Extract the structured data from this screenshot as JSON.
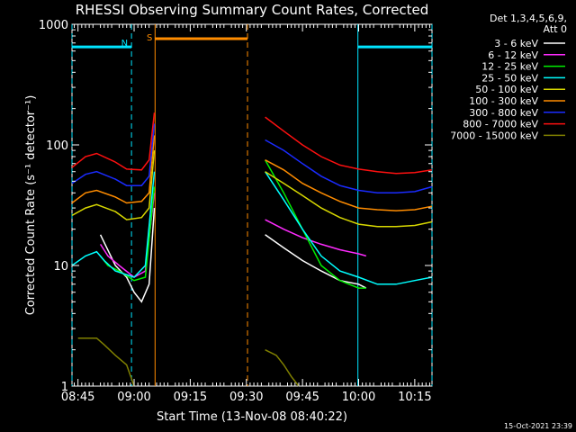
{
  "chart_data": {
    "type": "line",
    "title": "RHESSI Observing Summary Count Rates, Corrected",
    "xlabel": "Start Time (13-Nov-08 08:40:22)",
    "ylabel": "Corrected Count Rate (s⁻¹ detector⁻¹)",
    "y_scale": "log",
    "ylim": [
      1,
      1000
    ],
    "xlim_minutes_after_0840": [
      3.4,
      99.6
    ],
    "x_ticks": [
      {
        "label": "08:45",
        "minutes": 5
      },
      {
        "label": "09:00",
        "minutes": 20
      },
      {
        "label": "09:15",
        "minutes": 35
      },
      {
        "label": "09:30",
        "minutes": 50
      },
      {
        "label": "09:45",
        "minutes": 65
      },
      {
        "label": "10:00",
        "minutes": 80
      },
      {
        "label": "10:15",
        "minutes": 95
      }
    ],
    "y_ticks": [
      {
        "label": "1",
        "value": 1
      },
      {
        "label": "10",
        "value": 10
      },
      {
        "label": "100",
        "value": 100
      },
      {
        "label": "1000",
        "value": 1000
      }
    ],
    "legend_header": [
      "Det 1,3,4,5,6,9,",
      "Att 0"
    ],
    "legend_position": "right",
    "footer_timestamp": "15-Oct-2021 23:39",
    "markers": [
      {
        "label": "N",
        "color": "#00e5ff"
      },
      {
        "label": "S",
        "color": "#ff8c00"
      }
    ],
    "intervals": [
      {
        "kind": "night",
        "color": "#00e5ff",
        "start": 3.4,
        "end": 19.3,
        "level": 650
      },
      {
        "kind": "night",
        "color": "#00e5ff",
        "start": 79.8,
        "end": 99.6,
        "level": 650
      },
      {
        "kind": "saa",
        "color": "#ff8c00",
        "start": 25.6,
        "end": 50.3,
        "level": 760
      }
    ],
    "series": [
      {
        "name": "3 - 6 keV",
        "color": "#ffffff",
        "points": [
          [
            11,
            18
          ],
          [
            15,
            10
          ],
          [
            18,
            8
          ],
          [
            20,
            6
          ],
          [
            22,
            5
          ],
          [
            24,
            7
          ],
          [
            25.4,
            30
          ],
          [
            55,
            18
          ],
          [
            60,
            14
          ],
          [
            65,
            11
          ],
          [
            70,
            9
          ],
          [
            75,
            7.5
          ],
          [
            80,
            7
          ],
          [
            82,
            6.5
          ]
        ]
      },
      {
        "name": "6 - 12 keV",
        "color": "#ff2bff",
        "points": [
          [
            11,
            15
          ],
          [
            13,
            12
          ],
          [
            16,
            10
          ],
          [
            20,
            8
          ],
          [
            23,
            9
          ],
          [
            25.4,
            40
          ],
          [
            55,
            24
          ],
          [
            60,
            20
          ],
          [
            65,
            17
          ],
          [
            70,
            15
          ],
          [
            75,
            13.5
          ],
          [
            80,
            12.5
          ],
          [
            82,
            12
          ]
        ]
      },
      {
        "name": "12 - 25 keV",
        "color": "#00ee00",
        "points": [
          [
            11,
            12
          ],
          [
            13,
            10
          ],
          [
            16,
            9
          ],
          [
            20,
            7.5
          ],
          [
            23,
            8
          ],
          [
            25.4,
            45
          ],
          [
            55,
            75
          ],
          [
            60,
            40
          ],
          [
            65,
            20
          ],
          [
            70,
            10
          ],
          [
            75,
            7.5
          ],
          [
            80,
            6.5
          ],
          [
            82,
            6.5
          ]
        ]
      },
      {
        "name": "25 - 50 keV",
        "color": "#00ffff",
        "points": [
          [
            3.4,
            10
          ],
          [
            7,
            12
          ],
          [
            10,
            13
          ],
          [
            12,
            11
          ],
          [
            15,
            9
          ],
          [
            20,
            8
          ],
          [
            23,
            10
          ],
          [
            25.4,
            60
          ],
          [
            55,
            60
          ],
          [
            60,
            35
          ],
          [
            65,
            20
          ],
          [
            70,
            12
          ],
          [
            75,
            9
          ],
          [
            80,
            8
          ],
          [
            85,
            7
          ],
          [
            90,
            7
          ],
          [
            95,
            7.5
          ],
          [
            99.6,
            8
          ]
        ]
      },
      {
        "name": "50 - 100 keV",
        "color": "#d8d800",
        "points": [
          [
            3.4,
            26
          ],
          [
            7,
            30
          ],
          [
            10,
            32
          ],
          [
            15,
            28
          ],
          [
            18,
            24
          ],
          [
            22,
            25
          ],
          [
            24,
            30
          ],
          [
            25.4,
            90
          ],
          [
            55,
            60
          ],
          [
            60,
            48
          ],
          [
            65,
            38
          ],
          [
            70,
            30
          ],
          [
            75,
            25
          ],
          [
            80,
            22
          ],
          [
            85,
            21
          ],
          [
            90,
            21
          ],
          [
            95,
            21.5
          ],
          [
            99.6,
            23
          ]
        ]
      },
      {
        "name": "100 - 300 keV",
        "color": "#ff8c00",
        "points": [
          [
            3.4,
            33
          ],
          [
            7,
            40
          ],
          [
            10,
            42
          ],
          [
            15,
            37
          ],
          [
            18,
            33
          ],
          [
            22,
            34
          ],
          [
            24,
            40
          ],
          [
            25.4,
            120
          ],
          [
            55,
            75
          ],
          [
            60,
            62
          ],
          [
            65,
            48
          ],
          [
            70,
            40
          ],
          [
            75,
            34
          ],
          [
            80,
            30
          ],
          [
            85,
            29
          ],
          [
            90,
            28.5
          ],
          [
            95,
            29
          ],
          [
            99.6,
            31
          ]
        ]
      },
      {
        "name": "300 - 800 keV",
        "color": "#1a2bff",
        "points": [
          [
            3.4,
            48
          ],
          [
            7,
            57
          ],
          [
            10,
            60
          ],
          [
            15,
            52
          ],
          [
            18,
            46
          ],
          [
            22,
            46
          ],
          [
            24,
            55
          ],
          [
            25.4,
            150
          ],
          [
            55,
            110
          ],
          [
            60,
            90
          ],
          [
            65,
            70
          ],
          [
            70,
            55
          ],
          [
            75,
            46
          ],
          [
            80,
            42
          ],
          [
            85,
            40
          ],
          [
            90,
            40
          ],
          [
            95,
            41
          ],
          [
            99.6,
            45
          ]
        ]
      },
      {
        "name": "800 - 7000 keV",
        "color": "#ff1010",
        "points": [
          [
            3.4,
            65
          ],
          [
            7,
            80
          ],
          [
            10,
            85
          ],
          [
            15,
            72
          ],
          [
            18,
            63
          ],
          [
            22,
            62
          ],
          [
            24,
            75
          ],
          [
            25.4,
            185
          ],
          [
            55,
            170
          ],
          [
            60,
            130
          ],
          [
            65,
            100
          ],
          [
            70,
            80
          ],
          [
            75,
            68
          ],
          [
            80,
            63
          ],
          [
            85,
            60
          ],
          [
            90,
            58
          ],
          [
            95,
            59
          ],
          [
            99.6,
            62
          ]
        ]
      },
      {
        "name": "7000 - 15000 keV",
        "color": "#808000",
        "points": [
          [
            5,
            2.5
          ],
          [
            8,
            2.5
          ],
          [
            10,
            2.5
          ],
          [
            12,
            2.2
          ],
          [
            15,
            1.8
          ],
          [
            18,
            1.5
          ],
          [
            20,
            1
          ],
          [
            55,
            2
          ],
          [
            58,
            1.8
          ],
          [
            60,
            1.5
          ],
          [
            62,
            1.2
          ],
          [
            64,
            1
          ]
        ]
      }
    ]
  }
}
